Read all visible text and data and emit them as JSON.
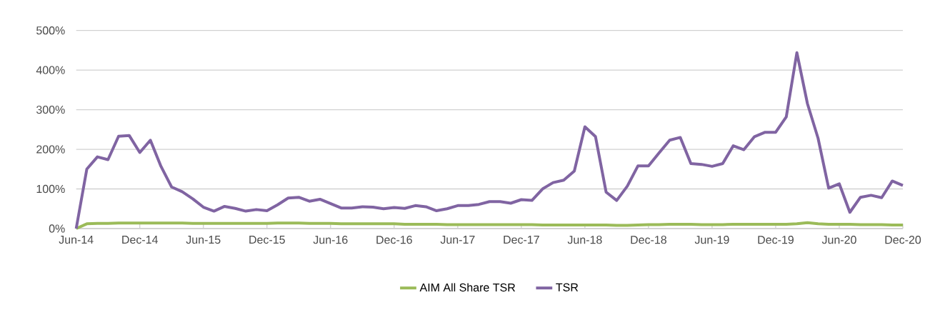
{
  "chart_data": {
    "type": "line",
    "categories": [
      "Jun-14",
      null,
      null,
      null,
      null,
      null,
      "Dec-14",
      null,
      null,
      null,
      null,
      null,
      "Jun-15",
      null,
      null,
      null,
      null,
      null,
      "Dec-15",
      null,
      null,
      null,
      null,
      null,
      "Jun-16",
      null,
      null,
      null,
      null,
      null,
      "Dec-16",
      null,
      null,
      null,
      null,
      null,
      "Jun-17",
      null,
      null,
      null,
      null,
      null,
      "Dec-17",
      null,
      null,
      null,
      null,
      null,
      "Jun-18",
      null,
      null,
      null,
      null,
      null,
      "Dec-18",
      null,
      null,
      null,
      null,
      null,
      "Jun-19",
      null,
      null,
      null,
      null,
      null,
      "Dec-19",
      null,
      null,
      null,
      null,
      null,
      "Jun-20",
      null,
      null,
      null,
      null,
      null,
      "Dec-20"
    ],
    "series": [
      {
        "name": "AIM All Share TSR",
        "color": "#9bbb59",
        "values": [
          0,
          12,
          13,
          13,
          14,
          14,
          14,
          14,
          14,
          14,
          14,
          13,
          13,
          13,
          13,
          13,
          13,
          13,
          13,
          14,
          14,
          14,
          13,
          13,
          13,
          12,
          12,
          12,
          12,
          12,
          12,
          11,
          11,
          11,
          11,
          10,
          10,
          10,
          10,
          10,
          10,
          10,
          10,
          10,
          9,
          9,
          9,
          9,
          9,
          9,
          9,
          8,
          8,
          9,
          10,
          10,
          11,
          11,
          11,
          10,
          10,
          10,
          11,
          11,
          11,
          11,
          11,
          11,
          12,
          15,
          12,
          11,
          11,
          11,
          10,
          10,
          10,
          9,
          9
        ]
      },
      {
        "name": "TSR",
        "color": "#8064a2",
        "values": [
          0,
          150,
          181,
          174,
          233,
          235,
          192,
          223,
          157,
          105,
          93,
          75,
          54,
          44,
          56,
          51,
          44,
          48,
          45,
          60,
          77,
          79,
          69,
          74,
          63,
          52,
          52,
          55,
          54,
          50,
          53,
          51,
          58,
          55,
          45,
          50,
          58,
          58,
          61,
          68,
          68,
          64,
          73,
          71,
          100,
          116,
          122,
          145,
          257,
          232,
          92,
          71,
          107,
          158,
          158,
          191,
          223,
          230,
          164,
          162,
          157,
          164,
          209,
          199,
          232,
          243,
          243,
          282,
          444,
          315,
          228,
          102,
          113,
          41,
          79,
          84,
          78,
          120,
          109
        ]
      }
    ],
    "ylim": [
      0,
      500
    ],
    "yticks": [
      {
        "value": 0,
        "label": "0%"
      },
      {
        "value": 100,
        "label": "100%"
      },
      {
        "value": 200,
        "label": "200%"
      },
      {
        "value": 300,
        "label": "300%"
      },
      {
        "value": 400,
        "label": "400%"
      },
      {
        "value": 500,
        "label": "500%"
      }
    ],
    "grid": "y",
    "legend": "bottom",
    "marker": "none",
    "line_style": "solid"
  }
}
